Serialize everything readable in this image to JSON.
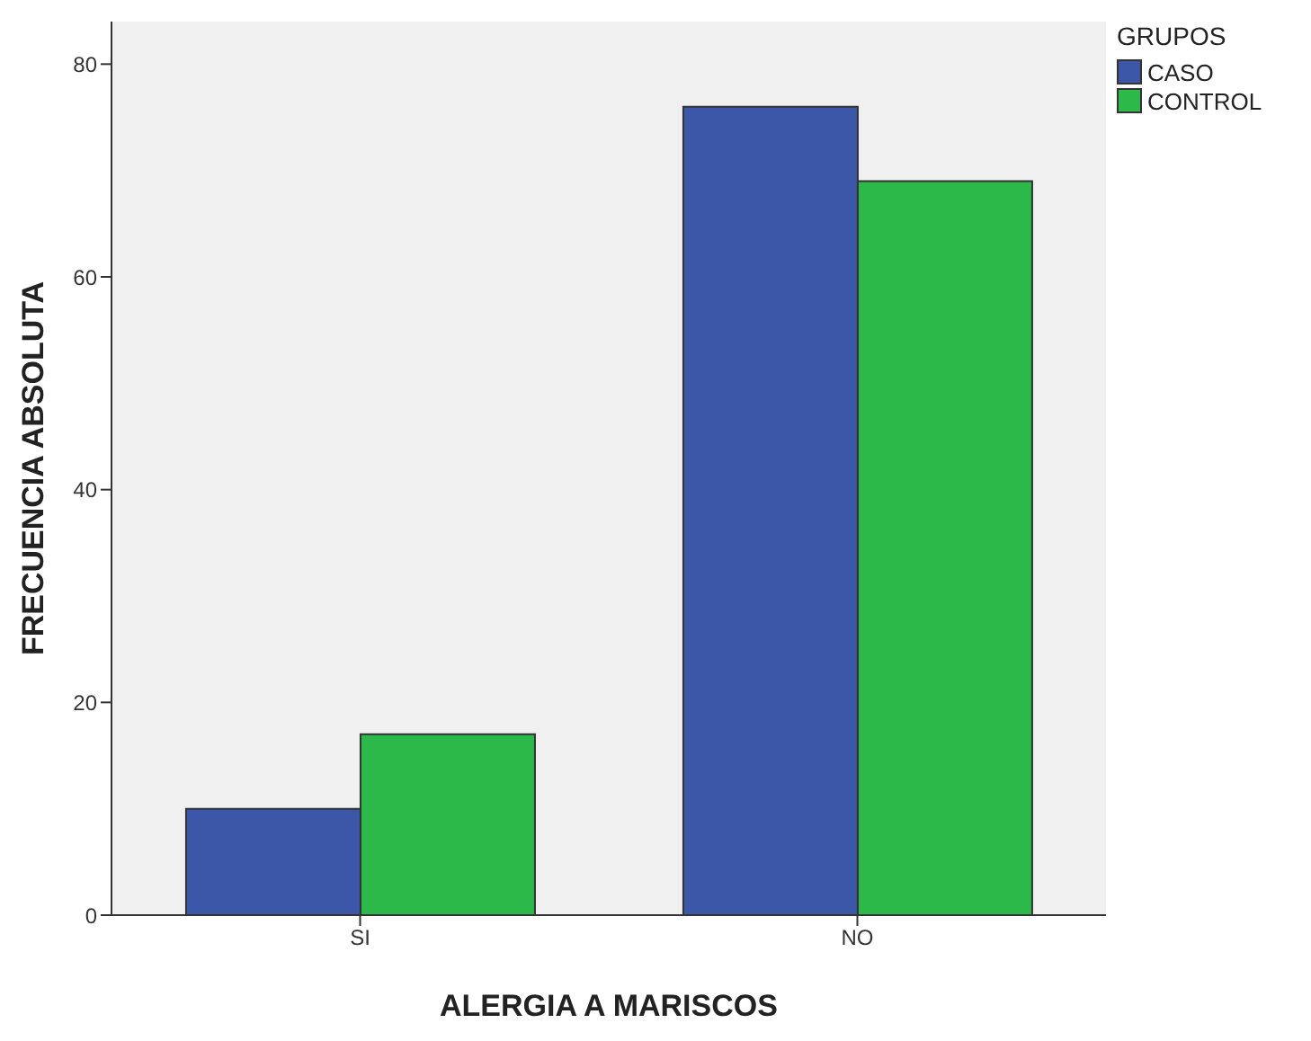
{
  "chart_data": {
    "type": "bar",
    "xlabel": "ALERGIA A MARISCOS",
    "ylabel": "FRECUENCIA ABSOLUTA",
    "legend_title": "GRUPOS",
    "categories": [
      "SI",
      "NO"
    ],
    "series": [
      {
        "name": "CASO",
        "color": "#3d57a8",
        "values": [
          10,
          76
        ]
      },
      {
        "name": "CONTROL",
        "color": "#2db84a",
        "values": [
          17,
          69
        ]
      }
    ],
    "ylim": [
      0,
      84
    ],
    "yticks": [
      0,
      20,
      40,
      60,
      80
    ],
    "legend": "top right"
  }
}
